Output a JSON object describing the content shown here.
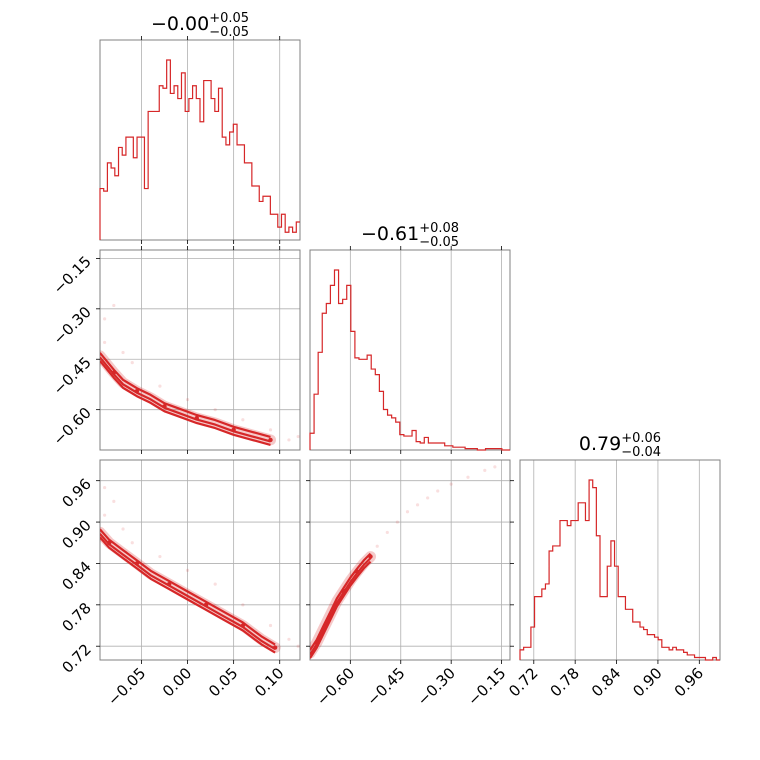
{
  "chart_data": {
    "type": "corner",
    "color": "#d62728",
    "grid": true,
    "params": [
      {
        "median": "−0.00",
        "plus": "+0.05",
        "minus": "−0.05",
        "range": [
          -0.095,
          0.122
        ],
        "ticks": [
          -0.05,
          0.0,
          0.05,
          0.1
        ],
        "tick_labels": [
          "−0.05",
          "0.00",
          "0.05",
          "0.10"
        ],
        "hist_counts": [
          20,
          19,
          30,
          28,
          25,
          36,
          33,
          40,
          40,
          32,
          40,
          40,
          20,
          50,
          50,
          50,
          60,
          59,
          70,
          57,
          60,
          55,
          65,
          50,
          55,
          60,
          55,
          46,
          62,
          62,
          55,
          50,
          59,
          40,
          37,
          42,
          45,
          37,
          37,
          30,
          30,
          21,
          21,
          15,
          17,
          17,
          10,
          10,
          5,
          10,
          3,
          5,
          3,
          7
        ]
      },
      {
        "median": "−0.61",
        "plus": "+0.08",
        "minus": "−0.05",
        "range": [
          -0.72,
          -0.125
        ],
        "ticks": [
          -0.6,
          -0.45,
          -0.3,
          -0.15
        ],
        "tick_labels": [
          "−0.60",
          "−0.45",
          "−0.30",
          "−0.15"
        ],
        "hist_counts": [
          12,
          40,
          70,
          98,
          105,
          118,
          129,
          105,
          108,
          118,
          85,
          66,
          65,
          65,
          68,
          58,
          54,
          42,
          29,
          25,
          23,
          20,
          11,
          10,
          10,
          14,
          6,
          5,
          9,
          5,
          5,
          5,
          5,
          3,
          3,
          2,
          2,
          2,
          1,
          1,
          1,
          0,
          0,
          1,
          1,
          1,
          1,
          0,
          0
        ]
      },
      {
        "median": "0.79",
        "plus": "+0.06",
        "minus": "−0.04",
        "range": [
          0.7,
          0.99
        ],
        "ticks": [
          0.72,
          0.78,
          0.84,
          0.9,
          0.96
        ],
        "tick_labels": [
          "0.72",
          "0.78",
          "0.84",
          "0.90",
          "0.96"
        ],
        "hist_counts": [
          4,
          5,
          5,
          13,
          25,
          25,
          28,
          30,
          43,
          45,
          45,
          55,
          55,
          53,
          55,
          55,
          62,
          62,
          55,
          71,
          68,
          49,
          25,
          25,
          37,
          47,
          37,
          25,
          25,
          20,
          20,
          15,
          15,
          13,
          12,
          10,
          10,
          9,
          8,
          5,
          5,
          4,
          5,
          4,
          4,
          3,
          2,
          2,
          1,
          1,
          1,
          0,
          0,
          1,
          0
        ]
      }
    ],
    "pairs": [
      {
        "x_param": 0,
        "y_param": 1,
        "ridge": [
          [
            -0.095,
            -0.44
          ],
          [
            -0.08,
            -0.49
          ],
          [
            -0.07,
            -0.52
          ],
          [
            -0.055,
            -0.545
          ],
          [
            -0.04,
            -0.565
          ],
          [
            -0.025,
            -0.59
          ],
          [
            -0.01,
            -0.605
          ],
          [
            0.01,
            -0.625
          ],
          [
            0.03,
            -0.64
          ],
          [
            0.05,
            -0.66
          ],
          [
            0.07,
            -0.675
          ],
          [
            0.09,
            -0.69
          ]
        ],
        "outliers": [
          [
            -0.09,
            -0.33
          ],
          [
            -0.08,
            -0.29
          ],
          [
            -0.09,
            -0.4
          ],
          [
            -0.07,
            -0.43
          ],
          [
            -0.06,
            -0.46
          ],
          [
            -0.03,
            -0.53
          ],
          [
            0.0,
            -0.57
          ],
          [
            0.03,
            -0.6
          ],
          [
            0.06,
            -0.63
          ],
          [
            0.09,
            -0.66
          ],
          [
            0.11,
            -0.69
          ],
          [
            0.12,
            -0.68
          ]
        ]
      },
      {
        "x_param": 0,
        "y_param": 2,
        "ridge": [
          [
            -0.095,
            0.885
          ],
          [
            -0.085,
            0.87
          ],
          [
            -0.07,
            0.855
          ],
          [
            -0.055,
            0.84
          ],
          [
            -0.04,
            0.825
          ],
          [
            -0.02,
            0.81
          ],
          [
            0.0,
            0.795
          ],
          [
            0.02,
            0.78
          ],
          [
            0.04,
            0.765
          ],
          [
            0.06,
            0.75
          ],
          [
            0.08,
            0.73
          ],
          [
            0.095,
            0.718
          ]
        ],
        "outliers": [
          [
            -0.09,
            0.95
          ],
          [
            -0.08,
            0.93
          ],
          [
            -0.09,
            0.91
          ],
          [
            -0.07,
            0.89
          ],
          [
            -0.06,
            0.87
          ],
          [
            -0.03,
            0.85
          ],
          [
            0.0,
            0.83
          ],
          [
            0.03,
            0.81
          ],
          [
            0.06,
            0.78
          ],
          [
            0.09,
            0.75
          ],
          [
            0.11,
            0.73
          ],
          [
            0.12,
            0.72
          ]
        ]
      },
      {
        "x_param": 1,
        "y_param": 2,
        "ridge": [
          [
            -0.72,
            0.71
          ],
          [
            -0.7,
            0.725
          ],
          [
            -0.68,
            0.745
          ],
          [
            -0.66,
            0.765
          ],
          [
            -0.64,
            0.785
          ],
          [
            -0.62,
            0.8
          ],
          [
            -0.6,
            0.815
          ],
          [
            -0.58,
            0.828
          ],
          [
            -0.56,
            0.84
          ],
          [
            -0.54,
            0.85
          ]
        ],
        "outliers": [
          [
            -0.52,
            0.865
          ],
          [
            -0.49,
            0.885
          ],
          [
            -0.46,
            0.9
          ],
          [
            -0.43,
            0.915
          ],
          [
            -0.4,
            0.925
          ],
          [
            -0.37,
            0.935
          ],
          [
            -0.34,
            0.945
          ],
          [
            -0.3,
            0.955
          ],
          [
            -0.25,
            0.965
          ],
          [
            -0.2,
            0.975
          ],
          [
            -0.17,
            0.98
          ]
        ]
      }
    ]
  }
}
